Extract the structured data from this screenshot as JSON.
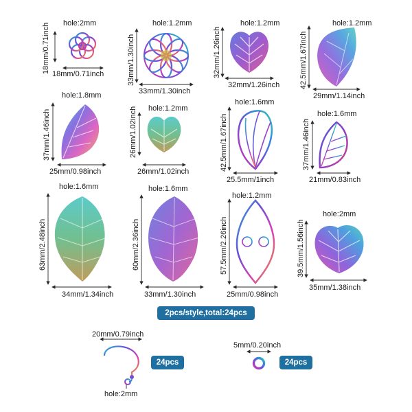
{
  "pieces": [
    {
      "id": "p1",
      "hole": "hole:2mm",
      "height": "18mm/0.71inch",
      "width": "18mm/0.71inch"
    },
    {
      "id": "p2",
      "hole": "hole:1.2mm",
      "height": "33mm/1.30inch",
      "width": "33mm/1.30inch"
    },
    {
      "id": "p3",
      "hole": "hole:1.2mm",
      "height": "32mm/1.26inch",
      "width": "32mm/1.26inch"
    },
    {
      "id": "p4",
      "hole": "hole:1.2mm",
      "height": "42.5mm/1.67inch",
      "width": "29mm/1.14inch"
    },
    {
      "id": "p5",
      "hole": "hole:1.8mm",
      "height": "37mm/1.46inch",
      "width": "25mm/0.98inch"
    },
    {
      "id": "p6",
      "hole": "hole:1.2mm",
      "height": "26mm/1.02inch",
      "width": "26mm/1.02inch"
    },
    {
      "id": "p7",
      "hole": "hole:1.6mm",
      "height": "42.5mm/1.67inch",
      "width": "25.5mm/1inch"
    },
    {
      "id": "p8",
      "hole": "hole:1.6mm",
      "height": "37mm/1.46inch",
      "width": "21mm/0.83inch"
    },
    {
      "id": "p9",
      "hole": "hole:1.6mm",
      "height": "63mm/2.48inch",
      "width": "34mm/1.34inch"
    },
    {
      "id": "p10",
      "hole": "hole:1.6mm",
      "height": "60mm/2.36inch",
      "width": "33mm/1.30inch"
    },
    {
      "id": "p11",
      "hole": "hole:1.2mm",
      "height": "57.5mm/2.26inch",
      "width": "25mm/0.98inch"
    },
    {
      "id": "p12",
      "hole": "hole:2mm",
      "height": "39.5mm/1.56inch",
      "width": "35mm/1.38inch"
    }
  ],
  "summary": "2pcs/style,total:24pcs",
  "earring_hook": {
    "width": "20mm/0.79inch",
    "hole": "hole:2mm",
    "count": "24pcs"
  },
  "jump_ring": {
    "size": "5mm/0.20inch",
    "count": "24pcs"
  },
  "colors": {
    "badge": "#1f6fa1",
    "arrow": "#2a2a2a",
    "metal": "rainbow-iridescent"
  }
}
